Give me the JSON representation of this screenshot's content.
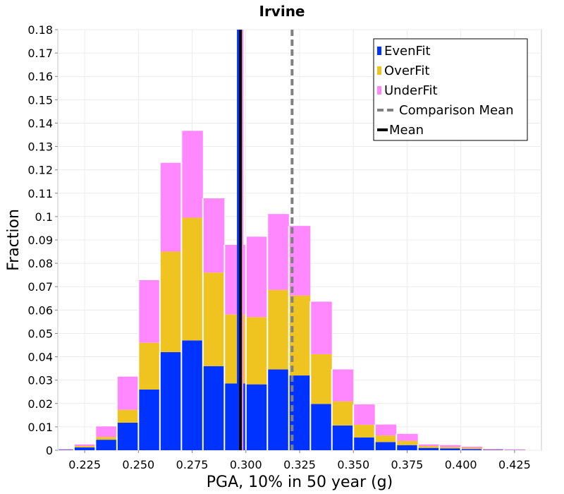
{
  "chart_data": {
    "type": "bar",
    "stacked": true,
    "title": "Irvine",
    "xlabel": "PGA, 10% in 50 year (g)",
    "ylabel": "Fraction",
    "xlim": [
      0.2125,
      0.4375
    ],
    "ylim": [
      0,
      0.18
    ],
    "xticks": [
      "0.225",
      "0.250",
      "0.275",
      "0.300",
      "0.325",
      "0.350",
      "0.375",
      "0.400",
      "0.425"
    ],
    "yticks": [
      "0",
      "0.01",
      "0.02",
      "0.03",
      "0.04",
      "0.05",
      "0.06",
      "0.07",
      "0.08",
      "0.09",
      "0.1",
      "0.11",
      "0.12",
      "0.13",
      "0.14",
      "0.15",
      "0.16",
      "0.17",
      "0.18"
    ],
    "bin_width": 0.01,
    "bin_centers": [
      0.215,
      0.225,
      0.235,
      0.245,
      0.255,
      0.265,
      0.275,
      0.285,
      0.295,
      0.305,
      0.315,
      0.325,
      0.335,
      0.345,
      0.355,
      0.365,
      0.375,
      0.385,
      0.395,
      0.405,
      0.415,
      0.425
    ],
    "series": [
      {
        "name": "EvenFit",
        "color": "#0033ff",
        "values": [
          0.0002,
          0.0012,
          0.0045,
          0.0118,
          0.026,
          0.042,
          0.047,
          0.036,
          0.0286,
          0.0282,
          0.0346,
          0.032,
          0.0198,
          0.0106,
          0.0055,
          0.0035,
          0.0022,
          0.001,
          0.0008,
          0.0005,
          0.0002,
          0.0001
        ]
      },
      {
        "name": "OverFit",
        "color": "#f0c420",
        "values": [
          0.0001,
          0.0006,
          0.0012,
          0.0055,
          0.02,
          0.043,
          0.0525,
          0.04,
          0.0295,
          0.0288,
          0.034,
          0.0342,
          0.0213,
          0.0103,
          0.0054,
          0.0028,
          0.0018,
          0.0008,
          0.0006,
          0.0005,
          0.0002,
          0.0001
        ]
      },
      {
        "name": "UnderFit",
        "color": "#ff88ff",
        "values": [
          0.0002,
          0.0007,
          0.0045,
          0.0142,
          0.0268,
          0.038,
          0.0372,
          0.0318,
          0.0298,
          0.0344,
          0.0325,
          0.0298,
          0.0225,
          0.0137,
          0.0087,
          0.0047,
          0.003,
          0.0007,
          0.0008,
          0.0005,
          0.0002,
          0.0002
        ]
      }
    ],
    "lines": {
      "evenfit_mean": {
        "x": 0.2965,
        "color": "#0033ff"
      },
      "underfit_mean": {
        "x": 0.2985,
        "color": "#ff88ff"
      },
      "overfit_mean": {
        "x": 0.2982,
        "color": "#f0c420"
      },
      "mean": {
        "x": 0.2975,
        "color": "#000000"
      },
      "comparison_mean": {
        "x": 0.3215,
        "color": "#808080",
        "style": "dashed"
      }
    },
    "legend": {
      "position": "top-right",
      "items": [
        {
          "label": "EvenFit",
          "kind": "box",
          "color": "#0033ff"
        },
        {
          "label": "OverFit",
          "kind": "box",
          "color": "#f0c420"
        },
        {
          "label": "UnderFit",
          "kind": "box",
          "color": "#ff88ff"
        },
        {
          "label": "Comparison Mean",
          "kind": "dashed",
          "color": "#808080"
        },
        {
          "label": "Mean",
          "kind": "line",
          "color": "#000000"
        }
      ]
    }
  }
}
